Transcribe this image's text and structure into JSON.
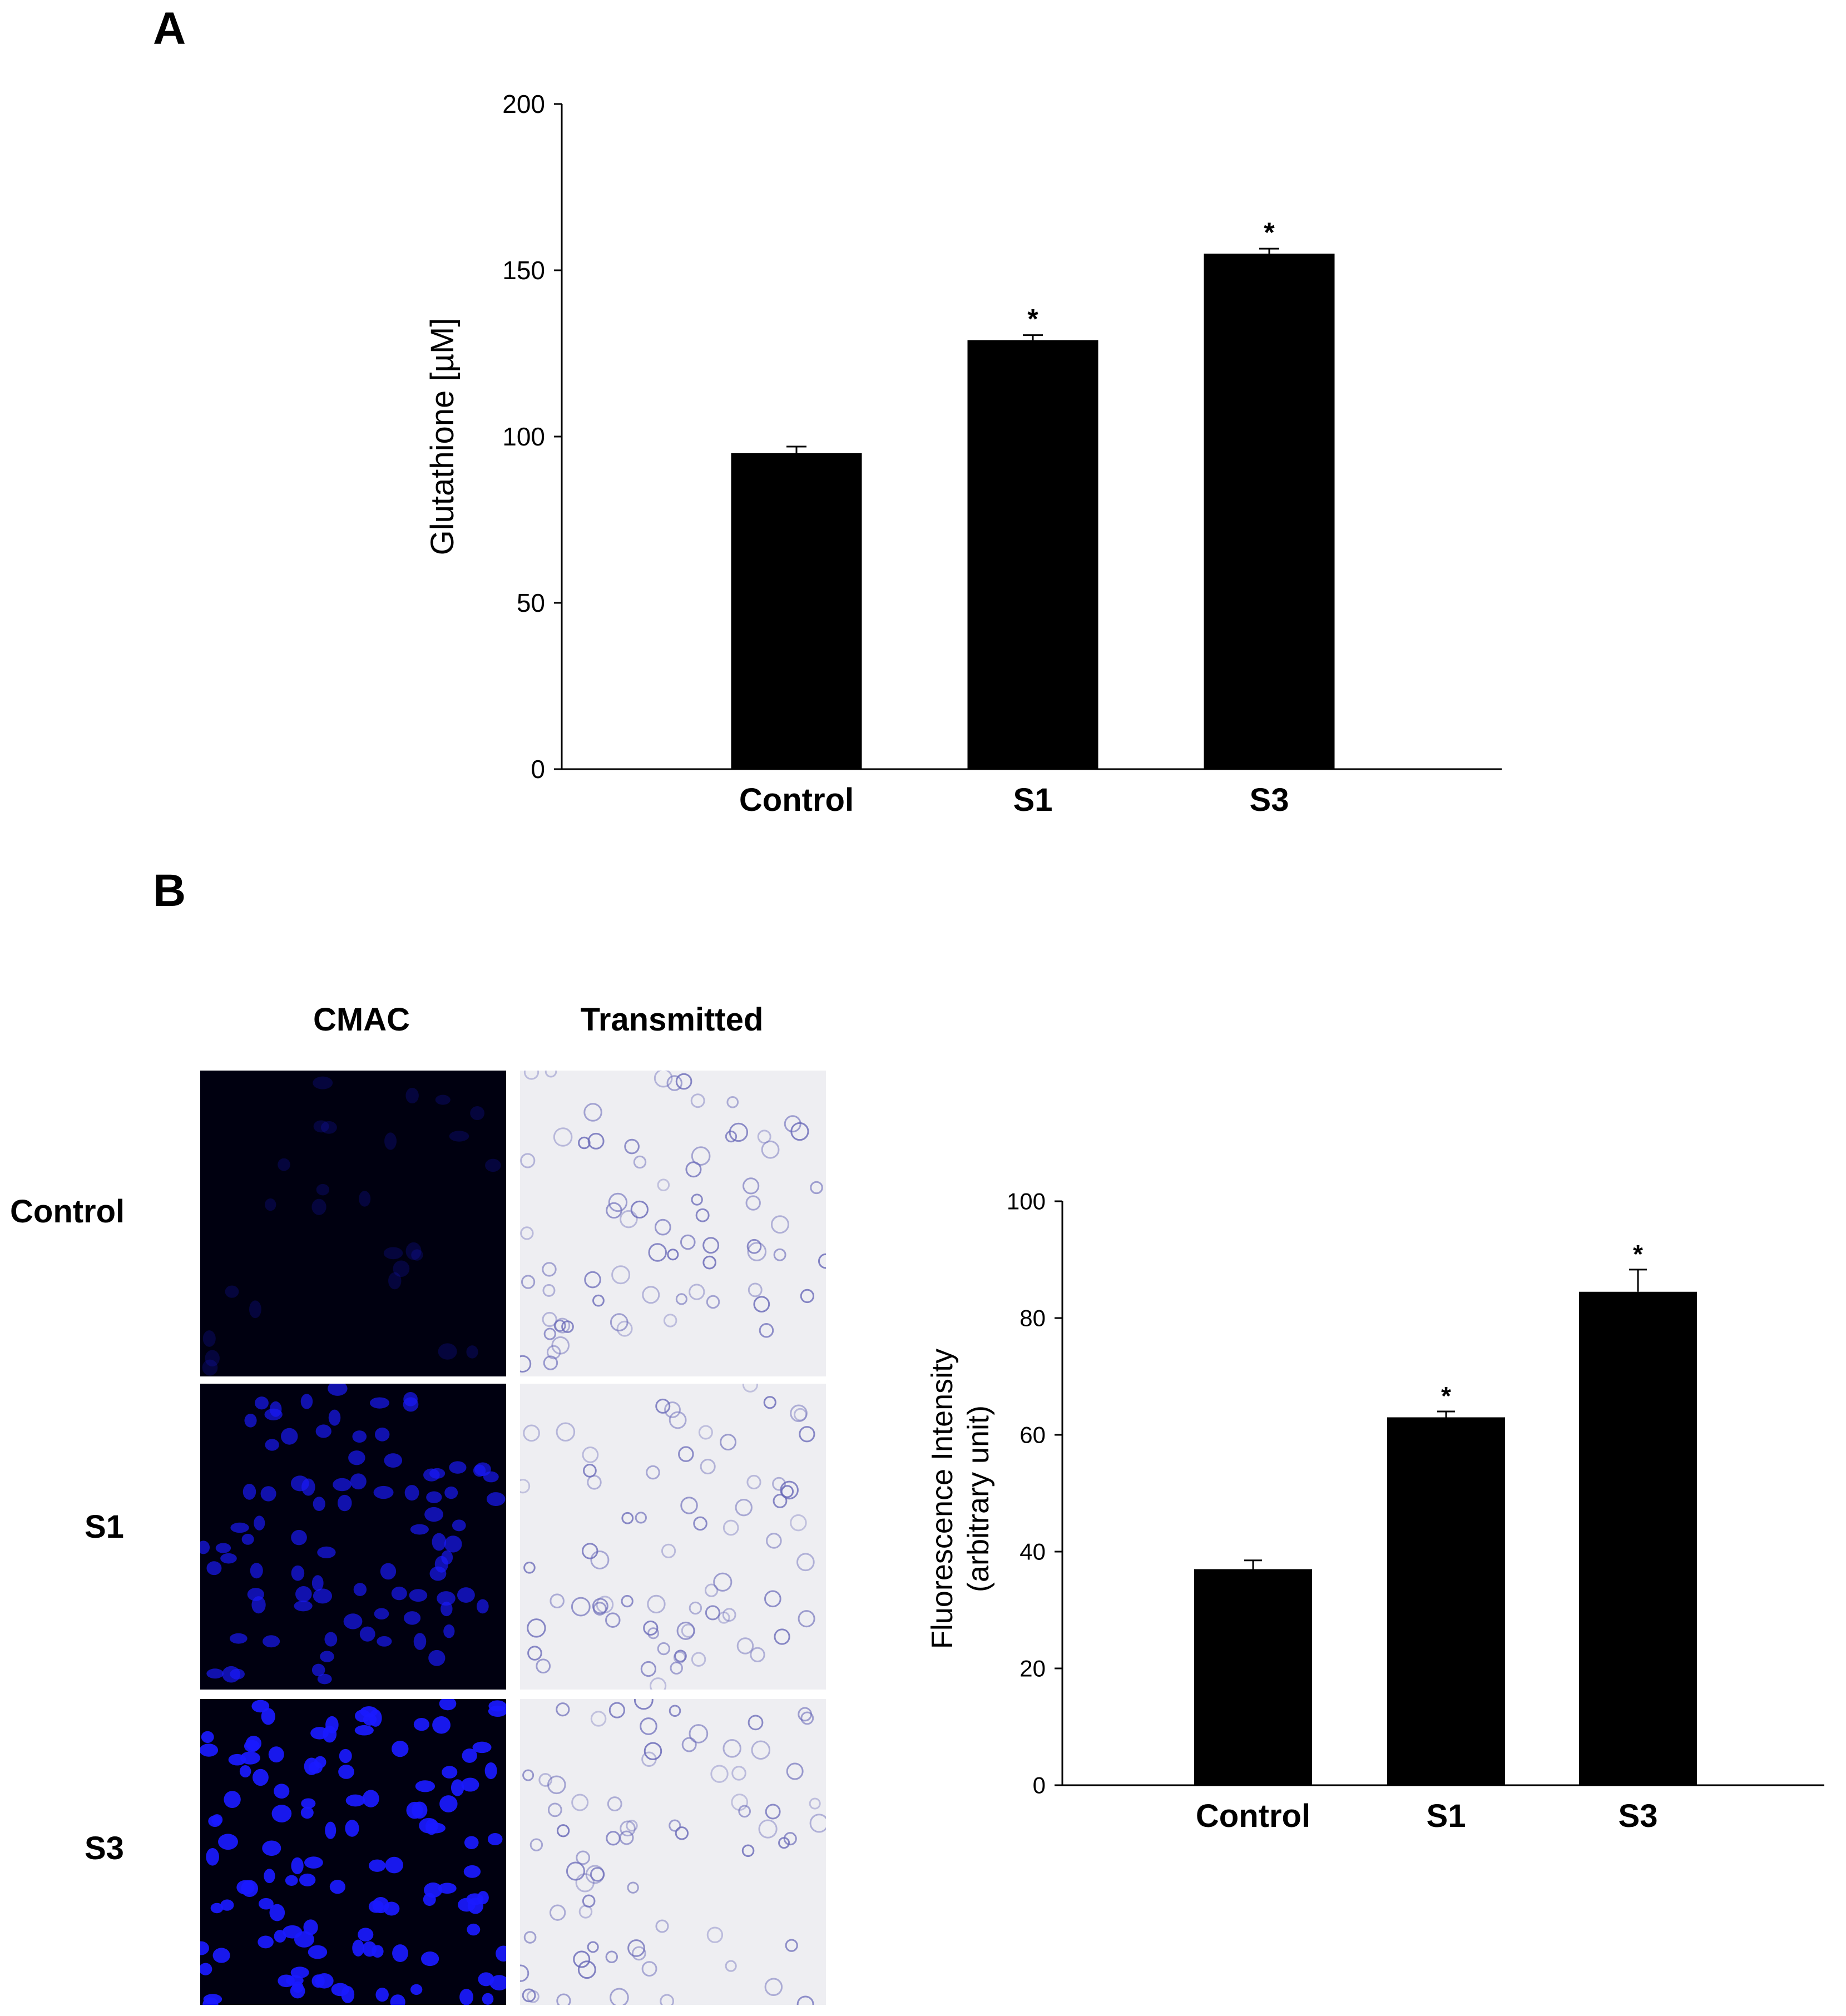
{
  "panels": {
    "a_label": "A",
    "b_label": "B"
  },
  "chart_data": [
    {
      "type": "bar",
      "panel": "A",
      "categories": [
        "Control",
        "S1",
        "S3"
      ],
      "values": [
        95,
        129,
        155
      ],
      "errors": [
        2,
        1.5,
        1.5
      ],
      "significance": [
        "",
        "*",
        "*"
      ],
      "ylabel": "Glutathione [µM]",
      "xlabel": "",
      "ylim": [
        0,
        200
      ],
      "yticks": [
        0,
        50,
        100,
        150,
        200
      ],
      "bar_color": "#000000",
      "grid": false
    },
    {
      "type": "bar",
      "panel": "B",
      "categories": [
        "Control",
        "S1",
        "S3"
      ],
      "values": [
        37,
        63,
        84.5
      ],
      "errors": [
        1.5,
        1,
        3.8
      ],
      "significance": [
        "",
        "*",
        "*"
      ],
      "ylabel_lines": [
        "Fluorescence Intensity",
        "(arbitrary unit)"
      ],
      "xlabel": "",
      "ylim": [
        0,
        100
      ],
      "yticks": [
        0,
        20,
        40,
        60,
        80,
        100
      ],
      "bar_color": "#000000",
      "grid": false
    }
  ],
  "micrographs": {
    "columns": [
      "CMAC",
      "Transmitted"
    ],
    "rows": [
      "Control",
      "S1",
      "S3"
    ],
    "cmac_intensity": [
      0.05,
      0.6,
      0.9
    ],
    "cmac_color": "#1a1aff",
    "background_color": "#000010"
  }
}
